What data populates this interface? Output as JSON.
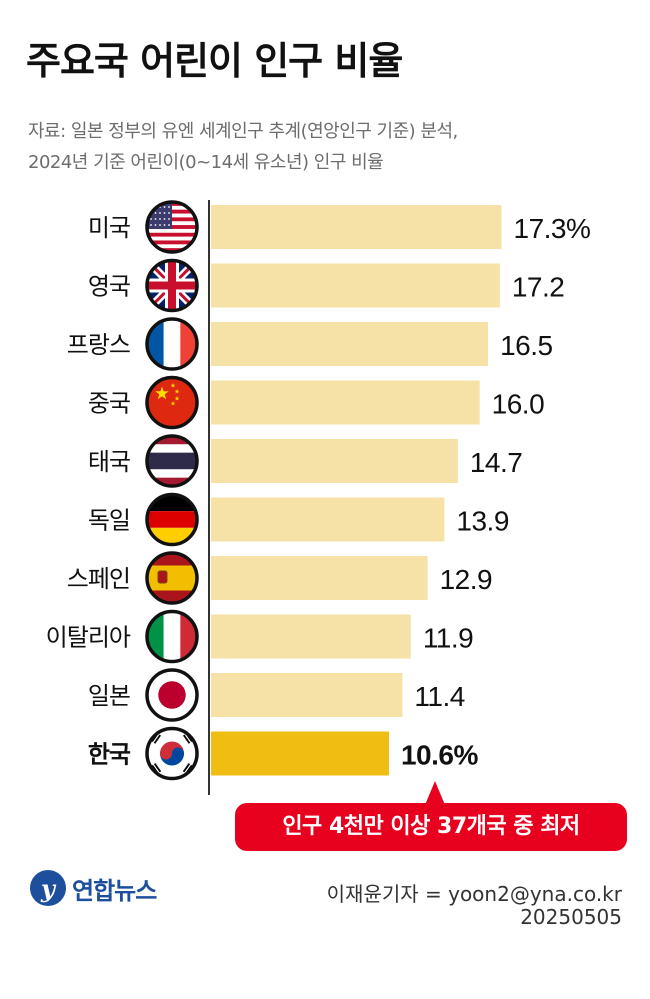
{
  "title": "주요국 어린이 인구 비율",
  "subtitle_lines": [
    "자료: 일본 정부의 유엔 세계인구 추계(연앙인구 기준) 분석,",
    "2024년 기준 어린이(0~14세 유소년) 인구 비율"
  ],
  "chart_data": {
    "type": "bar",
    "orientation": "horizontal",
    "categories": [
      "미국",
      "영국",
      "프랑스",
      "중국",
      "태국",
      "독일",
      "스페인",
      "이탈리아",
      "일본",
      "한국"
    ],
    "values": [
      17.3,
      17.2,
      16.5,
      16.0,
      14.7,
      13.9,
      12.9,
      11.9,
      11.4,
      10.6
    ],
    "value_labels": [
      "17.3%",
      "17.2",
      "16.5",
      "16.0",
      "14.7",
      "13.9",
      "12.9",
      "11.9",
      "11.4",
      "10.6%"
    ],
    "unit": "%",
    "highlight": "한국",
    "colors": {
      "bar": "#f6e2a6",
      "highlight": "#f0be12",
      "axis": "#333333"
    },
    "flag_icons": [
      "us-flag-icon",
      "uk-flag-icon",
      "france-flag-icon",
      "china-flag-icon",
      "thailand-flag-icon",
      "germany-flag-icon",
      "spain-flag-icon",
      "italy-flag-icon",
      "japan-flag-icon",
      "korea-flag-icon"
    ]
  },
  "callout": "인구 4천만 이상 37개국 중 최저",
  "logo": "연합뉴스",
  "credit": "이재윤기자 = yoon2@yna.co.kr",
  "date": "20250505",
  "accent_color": "#e8001f"
}
